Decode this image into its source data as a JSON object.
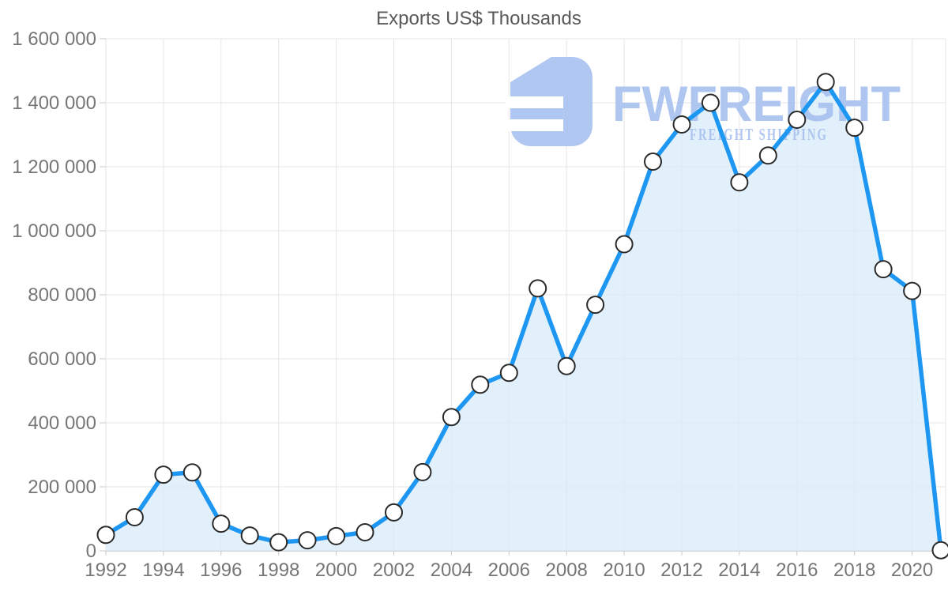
{
  "watermark": {
    "brand": "FWFREIGHT",
    "tagline": "FREIGHT SHIPPING",
    "color": "#a7c1ef"
  },
  "chart_data": {
    "type": "area",
    "title": "Exports US$ Thousands",
    "xlabel": "",
    "ylabel": "",
    "x": [
      1992,
      1993,
      1994,
      1995,
      1996,
      1997,
      1998,
      1999,
      2000,
      2001,
      2002,
      2003,
      2004,
      2005,
      2006,
      2007,
      2008,
      2009,
      2010,
      2011,
      2012,
      2013,
      2014,
      2015,
      2016,
      2017,
      2018,
      2019,
      2020,
      2021
    ],
    "values": [
      50000,
      105000,
      238000,
      245000,
      85000,
      48000,
      27000,
      33000,
      46000,
      58000,
      120000,
      246000,
      418000,
      519000,
      556000,
      820000,
      577000,
      769000,
      958000,
      1216000,
      1332000,
      1400000,
      1151000,
      1235000,
      1347000,
      1465000,
      1322000,
      880000,
      812000,
      2000
    ],
    "ylim": [
      0,
      1600000
    ],
    "xlim": [
      1992,
      2021
    ],
    "grid": true,
    "legend": "none",
    "y_ticks": [
      0,
      200000,
      400000,
      600000,
      800000,
      1000000,
      1200000,
      1400000,
      1600000
    ],
    "y_tick_labels": [
      "0",
      "200 000",
      "400 000",
      "600 000",
      "800 000",
      "1 000 000",
      "1 200 000",
      "1 400 000",
      "1 600 000"
    ],
    "x_ticks": [
      1992,
      1994,
      1996,
      1998,
      2000,
      2002,
      2004,
      2006,
      2008,
      2010,
      2012,
      2014,
      2016,
      2018,
      2020
    ],
    "x_tick_labels": [
      "1992",
      "1994",
      "1996",
      "1998",
      "2000",
      "2002",
      "2004",
      "2006",
      "2008",
      "2010",
      "2012",
      "2014",
      "2016",
      "2018",
      "2020"
    ],
    "line_color": "#1e97f2",
    "area_color": "#d8ebfa",
    "marker_fill": "#ffffff",
    "marker_stroke": "#2a2a2a",
    "grid_color": "#e6e6e6",
    "axis_color": "#c9c9c9",
    "label_color": "#767676",
    "title_color": "#58595b"
  }
}
